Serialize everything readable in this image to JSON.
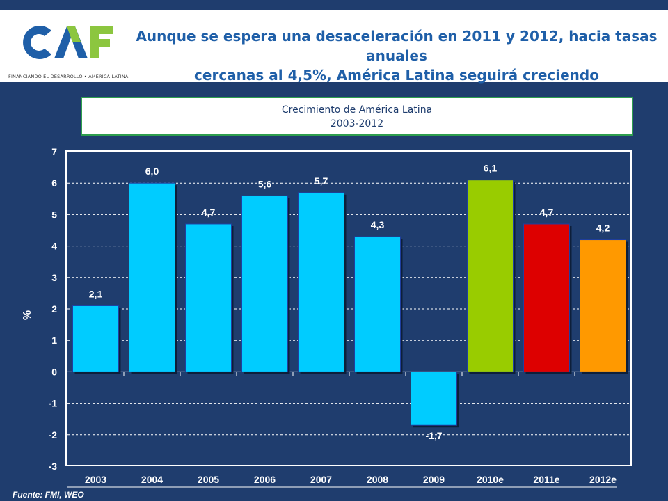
{
  "header": {
    "logo_text": "CAF",
    "logo_tagline": "FINANCIANDO EL DESARROLLO • AMÉRICA LATINA",
    "title_line1": "Aunque se espera una desaceleración en 2011 y 2012, hacia tasas anuales",
    "title_line2": "cercanas al 4,5%, América Latina seguirá creciendo"
  },
  "chart_data": {
    "type": "bar",
    "title": "Crecimiento de América Latina",
    "subtitle": "2003-2012",
    "ylabel": "%",
    "xlabel": "",
    "ylim": [
      -3,
      7
    ],
    "yticks": [
      -3,
      -2,
      -1,
      0,
      1,
      2,
      3,
      4,
      5,
      6,
      7
    ],
    "grid": true,
    "categories": [
      "2003",
      "2004",
      "2005",
      "2006",
      "2007",
      "2008",
      "2009",
      "2010e",
      "2011e",
      "2012e"
    ],
    "values": [
      2.1,
      6.0,
      4.7,
      5.6,
      5.7,
      4.3,
      -1.7,
      6.1,
      4.7,
      4.2
    ],
    "data_labels": [
      "2,1",
      "6,0",
      "4,7",
      "5,6",
      "5,7",
      "4,3",
      "-1,7",
      "6,1",
      "4,7",
      "4,2"
    ],
    "colors": [
      "#00ccff",
      "#00ccff",
      "#00ccff",
      "#00ccff",
      "#00ccff",
      "#00ccff",
      "#00ccff",
      "#99cc00",
      "#dd0000",
      "#ff9900"
    ]
  },
  "footer": {
    "source": "Fuente: FMI, WEO"
  }
}
